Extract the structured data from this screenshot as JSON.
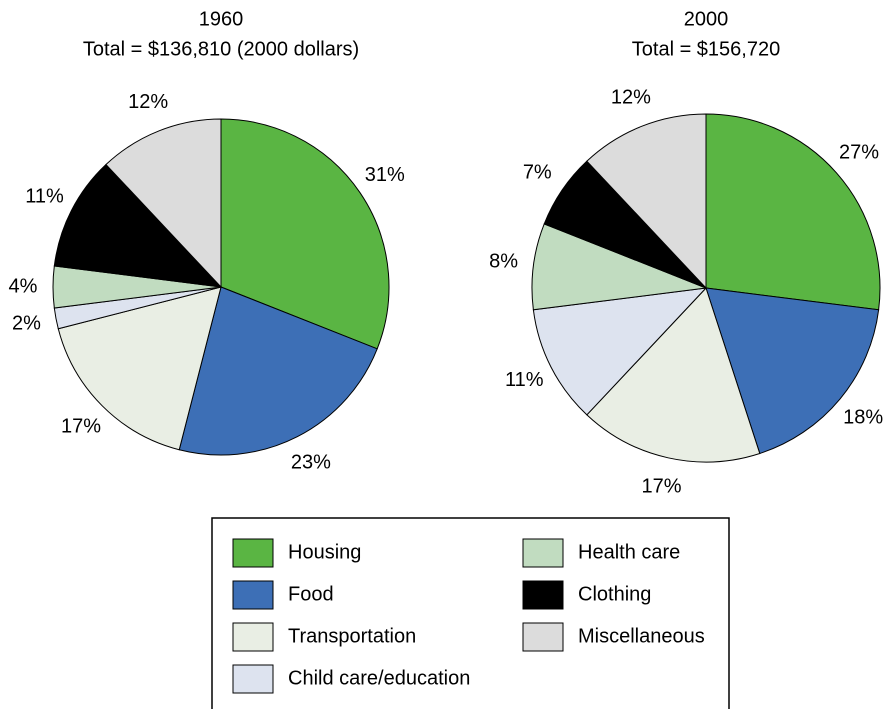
{
  "chart_data": [
    {
      "type": "pie",
      "title": "1960",
      "subtitle": "Total = $136,810 (2000 dollars)",
      "categories": [
        "Housing",
        "Food",
        "Transportation",
        "Child care/education",
        "Health care",
        "Clothing",
        "Miscellaneous"
      ],
      "values": [
        31,
        23,
        17,
        2,
        4,
        11,
        12
      ],
      "value_labels": [
        "31%",
        "23%",
        "17%",
        "2%",
        "4%",
        "11%",
        "12%"
      ],
      "colors": [
        "#5ab543",
        "#3d6fb6",
        "#e9eee4",
        "#dde3ef",
        "#c1dcc0",
        "#000000",
        "#dcdcdc"
      ]
    },
    {
      "type": "pie",
      "title": "2000",
      "subtitle": "Total = $156,720",
      "categories": [
        "Housing",
        "Food",
        "Transportation",
        "Child care/education",
        "Health care",
        "Clothing",
        "Miscellaneous"
      ],
      "values": [
        27,
        18,
        17,
        11,
        8,
        7,
        12
      ],
      "value_labels": [
        "27%",
        "18%",
        "17%",
        "11%",
        "8%",
        "7%",
        "12%"
      ],
      "colors": [
        "#5ab543",
        "#3d6fb6",
        "#e9eee4",
        "#dde3ef",
        "#c1dcc0",
        "#000000",
        "#dcdcdc"
      ]
    }
  ]
}
